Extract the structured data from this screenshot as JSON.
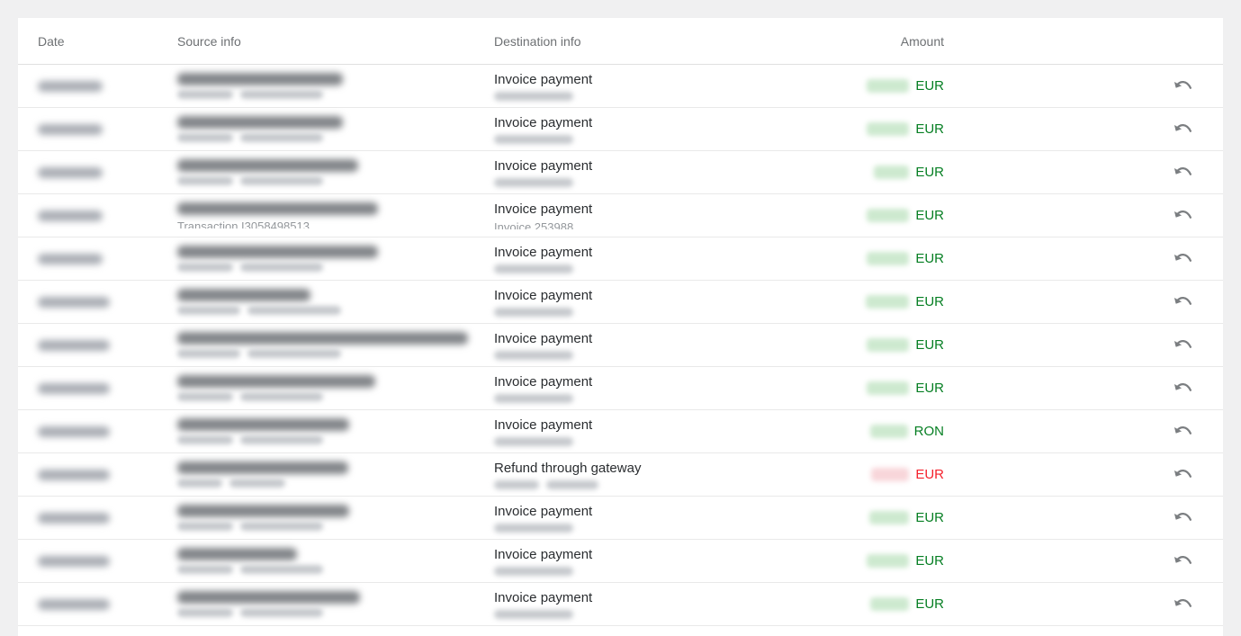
{
  "table": {
    "headers": [
      "Date",
      "Source info",
      "Destination info",
      "Amount"
    ],
    "rows": [
      {
        "date_w": 72,
        "src1_w": 184,
        "src2_blobs": [
          62,
          92
        ],
        "dest_title": "Invoice payment",
        "dest2_blobs": [
          88
        ],
        "amount_w": 47,
        "currency": "EUR"
      },
      {
        "date_w": 72,
        "src1_w": 184,
        "src2_blobs": [
          62,
          92
        ],
        "dest_title": "Invoice payment",
        "dest2_blobs": [
          88
        ],
        "amount_w": 47,
        "currency": "EUR"
      },
      {
        "date_w": 72,
        "src1_w": 201,
        "src2_blobs": [
          62,
          92
        ],
        "dest_title": "Invoice payment",
        "dest2_blobs": [
          88
        ],
        "amount_w": 39,
        "currency": "EUR"
      },
      {
        "date_w": 72,
        "src1_w": 223,
        "src2_text": "Transaction I3058498513",
        "dest_title": "Invoice payment",
        "dest2_text": "Invoice 253988",
        "amount_w": 47,
        "currency": "EUR"
      },
      {
        "date_w": 72,
        "src1_w": 223,
        "src2_blobs": [
          62,
          92
        ],
        "dest_title": "Invoice payment",
        "dest2_blobs": [
          88
        ],
        "amount_w": 47,
        "currency": "EUR"
      },
      {
        "date_w": 80,
        "src1_w": 148,
        "src2_blobs": [
          70,
          104
        ],
        "dest_title": "Invoice payment",
        "dest2_blobs": [
          88
        ],
        "amount_w": 48,
        "currency": "EUR"
      },
      {
        "date_w": 80,
        "src1_w": 323,
        "src2_blobs": [
          70,
          104
        ],
        "dest_title": "Invoice payment",
        "dest2_blobs": [
          88
        ],
        "amount_w": 47,
        "currency": "EUR"
      },
      {
        "date_w": 80,
        "src1_w": 220,
        "src2_blobs": [
          62,
          92
        ],
        "dest_title": "Invoice payment",
        "dest2_blobs": [
          88
        ],
        "amount_w": 47,
        "currency": "EUR"
      },
      {
        "date_w": 80,
        "src1_w": 191,
        "src2_blobs": [
          62,
          92
        ],
        "dest_title": "Invoice payment",
        "dest2_blobs": [
          88
        ],
        "amount_w": 42,
        "currency": "RON"
      },
      {
        "date_w": 80,
        "src1_w": 190,
        "src2_blobs": [
          50,
          62
        ],
        "dest_title": "Refund through gateway",
        "dest2_blobs": [
          50,
          58
        ],
        "amount_w": 42,
        "currency": "EUR",
        "negative": true
      },
      {
        "date_w": 80,
        "src1_w": 191,
        "src2_blobs": [
          62,
          92
        ],
        "dest_title": "Invoice payment",
        "dest2_blobs": [
          88
        ],
        "amount_w": 44,
        "currency": "EUR"
      },
      {
        "date_w": 80,
        "src1_w": 133,
        "src2_blobs": [
          62,
          92
        ],
        "dest_title": "Invoice payment",
        "dest2_blobs": [
          88
        ],
        "amount_w": 47,
        "currency": "EUR"
      },
      {
        "date_w": 80,
        "src1_w": 203,
        "src2_blobs": [
          62,
          92
        ],
        "dest_title": "Invoice payment",
        "dest2_blobs": [
          88
        ],
        "amount_w": 43,
        "currency": "EUR"
      }
    ]
  },
  "icons": {
    "row_action": "undo-arrow"
  },
  "colors": {
    "page_background": "#f0f0f1",
    "positive_amount": "#067f23",
    "negative_amount": "#f5222d",
    "positive_amount_blob": "#cde9cf",
    "negative_amount_blob": "#f8d6da",
    "header_text": "#6d7073",
    "row_border": "#e9e9e9",
    "icon_gray": "#7b7e81"
  }
}
